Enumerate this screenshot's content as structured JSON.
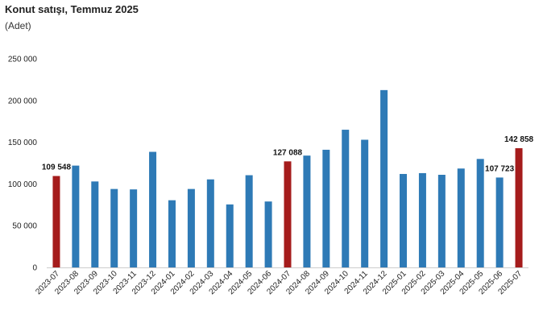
{
  "chart_data": {
    "type": "bar",
    "title": "Konut satışı, Temmuz 2025",
    "subtitle": "(Adet)",
    "xlabel": "",
    "ylabel": "",
    "ylim": [
      0,
      250000
    ],
    "yticks": [
      0,
      50000,
      100000,
      150000,
      200000,
      250000
    ],
    "ytick_labels": [
      "0",
      "50 000",
      "100 000",
      "150 000",
      "200 000",
      "250 000"
    ],
    "grid": false,
    "legend": "none",
    "categories": [
      "2023-07",
      "2023-08",
      "2023-09",
      "2023-10",
      "2023-11",
      "2023-12",
      "2024-01",
      "2024-02",
      "2024-03",
      "2024-04",
      "2024-05",
      "2024-06",
      "2024-07",
      "2024-08",
      "2024-09",
      "2024-10",
      "2024-11",
      "2024-12",
      "2025-01",
      "2025-02",
      "2025-03",
      "2025-04",
      "2025-05",
      "2025-06",
      "2025-07"
    ],
    "values": [
      109548,
      122000,
      103000,
      94000,
      93500,
      138500,
      80500,
      94000,
      105500,
      75500,
      110500,
      79000,
      127088,
      134000,
      141000,
      165000,
      153000,
      212500,
      112000,
      113000,
      111000,
      118500,
      130000,
      107723,
      142858
    ],
    "highlight_indices": [
      0,
      12,
      24
    ],
    "data_labels": [
      {
        "index": 0,
        "text": "109 548"
      },
      {
        "index": 12,
        "text": "127 088"
      },
      {
        "index": 23,
        "text": "107 723"
      },
      {
        "index": 24,
        "text": "142 858"
      }
    ],
    "colors": {
      "bar": "#2e7ab6",
      "highlight": "#a51c1c",
      "axis": "#cccccc"
    }
  }
}
